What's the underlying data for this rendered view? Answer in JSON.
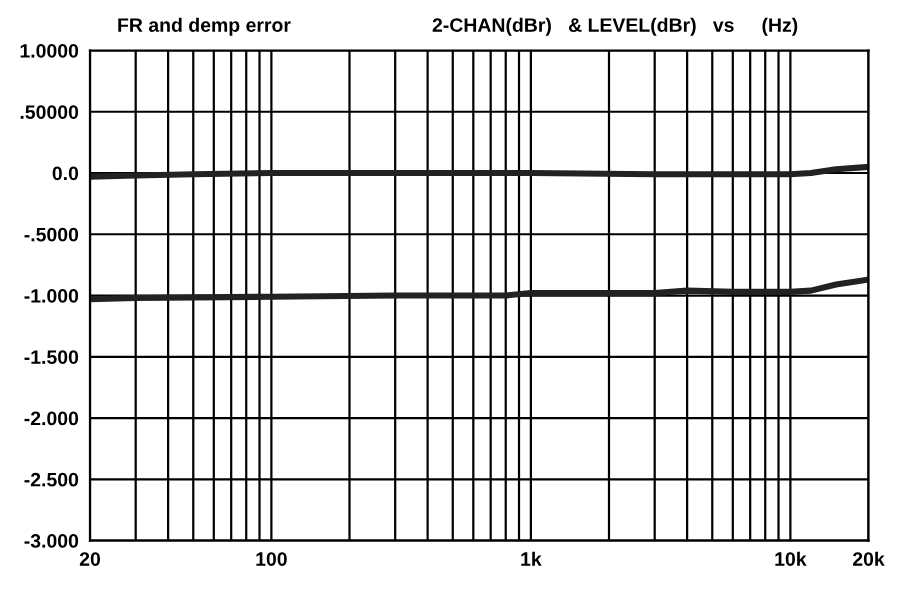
{
  "chart_data": {
    "type": "line",
    "title": "FR and demp error",
    "subtitle": "2-CHAN(dBr)   & LEVEL(dBr)   vs     (Hz)",
    "log": "x",
    "grid": true,
    "marker": "none",
    "line_style": "solid",
    "xlim": [
      20,
      20000
    ],
    "xticks": [
      20,
      {
        "value": 30,
        "label": null
      },
      {
        "value": 40,
        "label": null
      },
      {
        "value": 50,
        "label": null
      },
      {
        "value": 60,
        "label": null
      },
      {
        "value": 70,
        "label": null
      },
      {
        "value": 80,
        "label": null
      },
      {
        "value": 90,
        "label": null
      },
      100,
      {
        "value": 200,
        "label": null
      },
      {
        "value": 300,
        "label": null
      },
      {
        "value": 400,
        "label": null
      },
      {
        "value": 500,
        "label": null
      },
      {
        "value": 600,
        "label": null
      },
      {
        "value": 700,
        "label": null
      },
      {
        "value": 800,
        "label": null
      },
      {
        "value": 900,
        "label": null
      },
      {
        "value": 1000,
        "label": "1k"
      },
      {
        "value": 2000,
        "label": null
      },
      {
        "value": 3000,
        "label": null
      },
      {
        "value": 4000,
        "label": null
      },
      {
        "value": 5000,
        "label": null
      },
      {
        "value": 6000,
        "label": null
      },
      {
        "value": 7000,
        "label": null
      },
      {
        "value": 8000,
        "label": null
      },
      {
        "value": 9000,
        "label": null
      },
      {
        "value": 10000,
        "label": "10k"
      },
      {
        "value": 20000,
        "label": "20k"
      }
    ],
    "ylim": [
      -3,
      1
    ],
    "yticks": [
      {
        "value": -3,
        "label": "-3.000"
      },
      {
        "value": -2.5,
        "label": "-2.500"
      },
      {
        "value": -2,
        "label": "-2.000"
      },
      {
        "value": -1.5,
        "label": "-1.500"
      },
      {
        "value": -1,
        "label": "-1.000"
      },
      {
        "value": -0.5,
        "label": "-.5000"
      },
      {
        "value": 0,
        "label": "0.0"
      },
      {
        "value": 0.5,
        "label": ".50000"
      },
      {
        "value": 1,
        "label": "1.0000"
      }
    ],
    "series": [
      {
        "color": "#222222",
        "x": [
          20,
          30,
          50,
          100,
          300,
          1000,
          3000,
          5000,
          8000,
          10000,
          12000,
          15000,
          20000
        ],
        "values": [
          -0.03,
          -0.02,
          -0.01,
          0,
          0,
          0,
          -0.01,
          -0.01,
          -0.01,
          -0.01,
          0,
          0.03,
          0.05
        ]
      },
      {
        "color": "#222222",
        "x": [
          20,
          30,
          100,
          300,
          800,
          1000,
          3000,
          4000,
          6000,
          10000,
          12000,
          15000,
          20000
        ],
        "values": [
          -1.03,
          -1.02,
          -1.01,
          -1.0,
          -1.0,
          -0.98,
          -0.98,
          -0.96,
          -0.97,
          -0.97,
          -0.96,
          -0.91,
          -0.87
        ]
      }
    ]
  }
}
